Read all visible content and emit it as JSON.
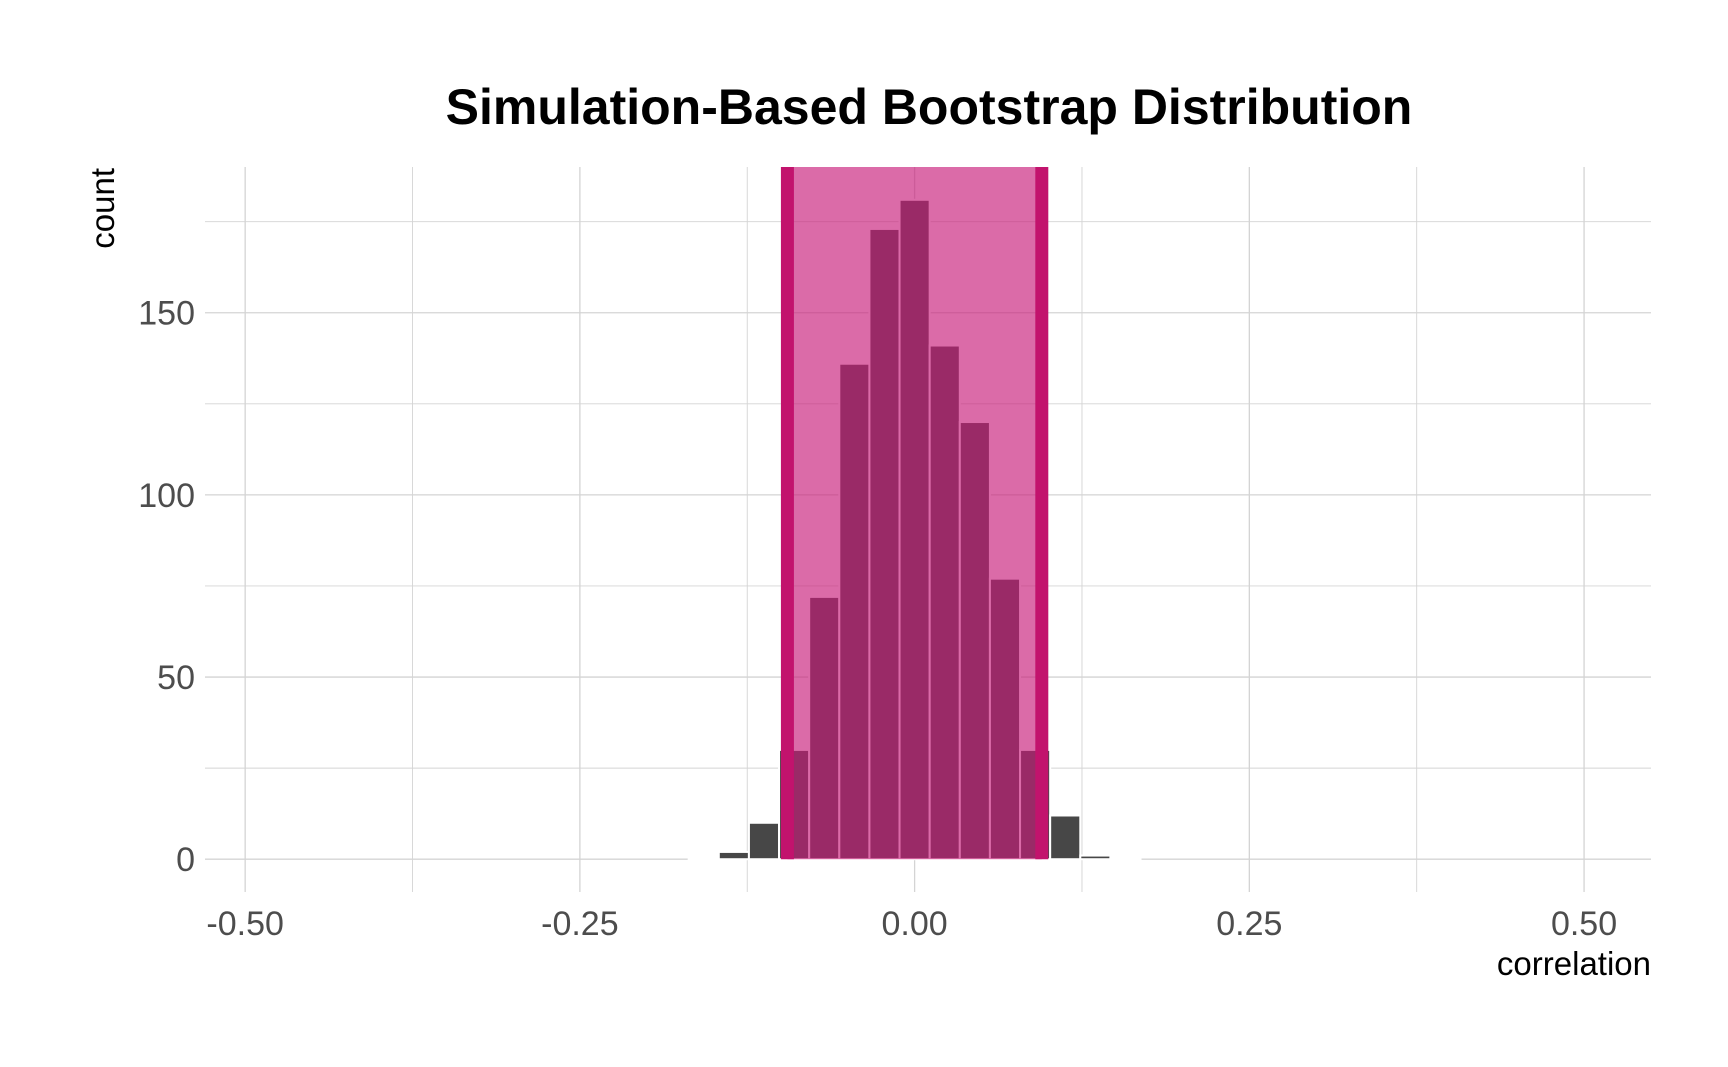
{
  "chart_data": {
    "type": "bar",
    "title": "Simulation-Based Bootstrap Distribution",
    "xlabel": "correlation",
    "ylabel": "count",
    "xlim": [
      -0.53,
      0.55
    ],
    "ylim": [
      -9,
      190
    ],
    "xticks": [
      -0.5,
      -0.25,
      0,
      0.25,
      0.5
    ],
    "xtick_labels": [
      "-0.50",
      "-0.25",
      "0.00",
      "0.25",
      "0.50"
    ],
    "yticks": [
      0,
      50,
      100,
      150
    ],
    "ytick_labels": [
      "0",
      "50",
      "100",
      "150"
    ],
    "grid": true,
    "bin_width": 0.0225,
    "bins": [
      {
        "x": -0.1575,
        "count": 0.4
      },
      {
        "x": -0.135,
        "count": 2
      },
      {
        "x": -0.1125,
        "count": 10
      },
      {
        "x": -0.09,
        "count": 30
      },
      {
        "x": -0.0675,
        "count": 72
      },
      {
        "x": -0.045,
        "count": 136
      },
      {
        "x": -0.0225,
        "count": 173
      },
      {
        "x": 0.0,
        "count": 181
      },
      {
        "x": 0.0225,
        "count": 141
      },
      {
        "x": 0.045,
        "count": 120
      },
      {
        "x": 0.0675,
        "count": 77
      },
      {
        "x": 0.09,
        "count": 30
      },
      {
        "x": 0.1125,
        "count": 12
      },
      {
        "x": 0.135,
        "count": 1
      },
      {
        "x": 0.1575,
        "count": 0.4
      }
    ],
    "interval": {
      "lower": -0.095,
      "upper": 0.095
    },
    "colors": {
      "bar": "#474747",
      "bar_outline": "#ffffff",
      "interval_fill": "#c71c7a",
      "interval_fill_opacity": 0.65,
      "interval_line": "#c2136d",
      "grid": "#d4d4d4"
    }
  }
}
